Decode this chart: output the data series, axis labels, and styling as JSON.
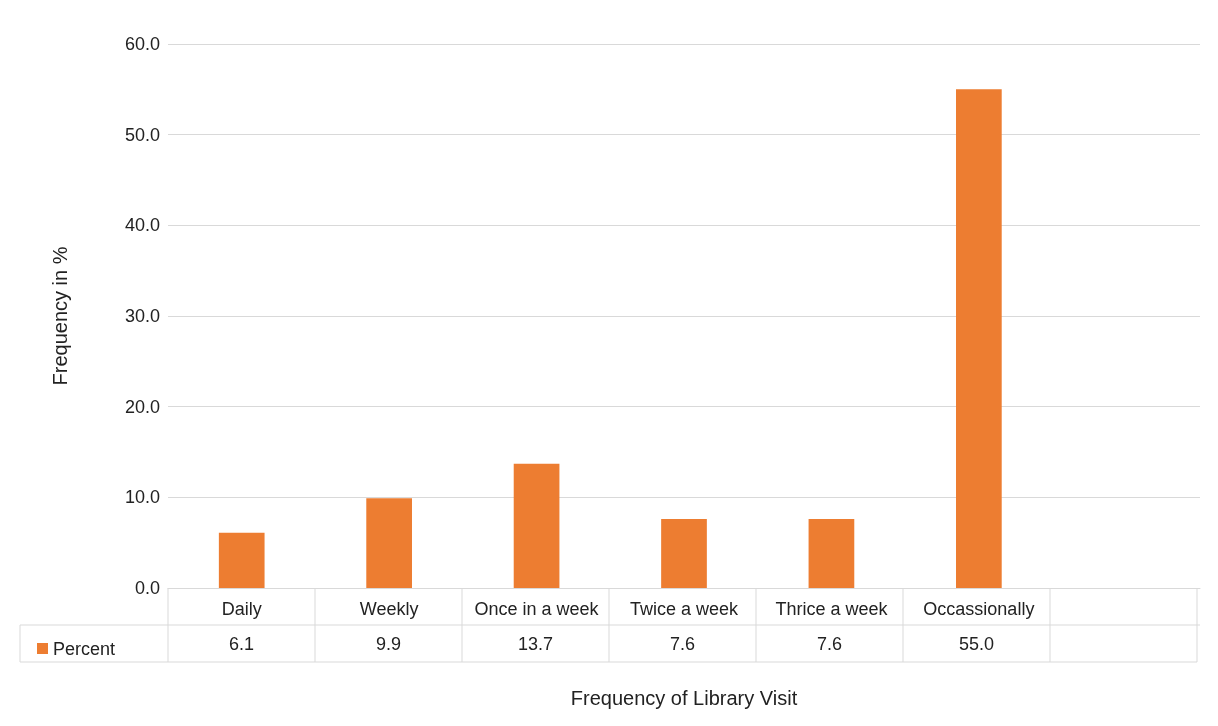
{
  "chart_data": {
    "type": "bar",
    "xlabel": "Frequency of Library Visit",
    "ylabel": "Frequency in %",
    "categories": [
      "Daily",
      "Weekly",
      "Once in a week",
      "Twice a week",
      "Thrice a week",
      "Occassionally",
      null
    ],
    "series": [
      {
        "name": "Percent",
        "color": "#ed7d31",
        "values": [
          6.1,
          9.9,
          13.7,
          7.6,
          7.6,
          55.0,
          null
        ],
        "value_labels": [
          "6.1",
          "9.9",
          "13.7",
          "7.6",
          "7.6",
          "55.0",
          null
        ]
      }
    ],
    "ylim": [
      0,
      60
    ],
    "yticks": [
      {
        "value": 0,
        "label": "0.0"
      },
      {
        "value": 10,
        "label": "10.0"
      },
      {
        "value": 20,
        "label": "20.0"
      },
      {
        "value": 30,
        "label": "30.0"
      },
      {
        "value": 40,
        "label": "40.0"
      },
      {
        "value": 50,
        "label": "50.0"
      },
      {
        "value": 60,
        "label": "60.0"
      }
    ],
    "grid": "y",
    "legend": "bottom left"
  }
}
